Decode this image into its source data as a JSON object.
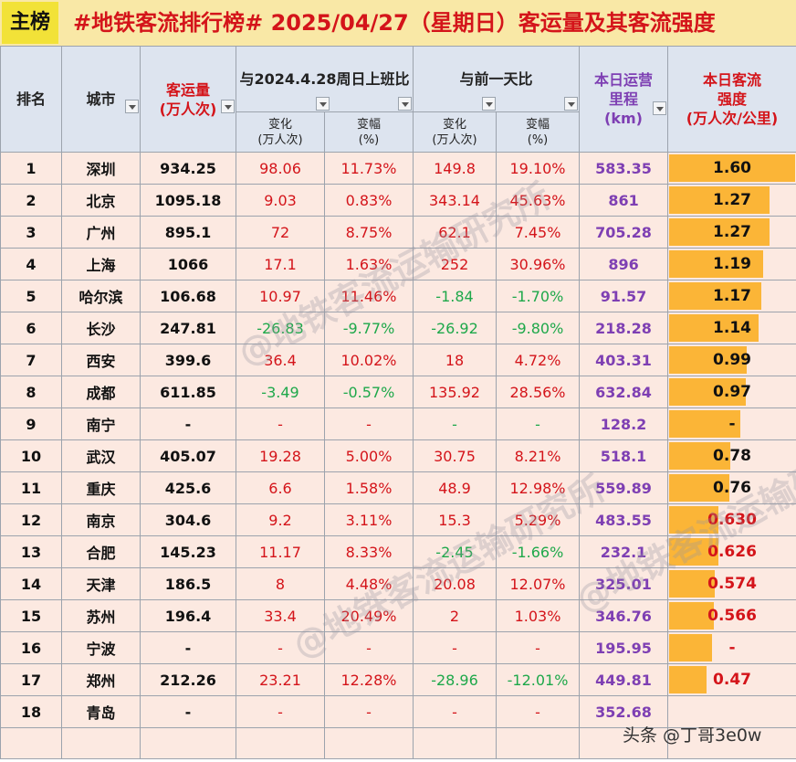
{
  "title_tag": "主榜",
  "title": "#地铁客流排行榜# 2025/04/27（星期日）客运量及其客流强度",
  "headers": {
    "rank": "排名",
    "city": "城市",
    "volume": [
      "客运量",
      "(万人次)"
    ],
    "comp_2024": "与2024.4.28周日上班比",
    "comp_prev": "与前一天比",
    "km": [
      "本日运营",
      "里程",
      "(km)"
    ],
    "intensity": [
      "本日客流",
      "强度",
      "(万人次/公里)"
    ],
    "change": [
      "变化",
      "(万人次)"
    ],
    "pct": [
      "变幅",
      "(%)"
    ]
  },
  "colors": {
    "red": "#d4141a",
    "green": "#1ea84a",
    "purple": "#7e3fb3",
    "bar": "#fbb537",
    "row_bg": "#fce9e1",
    "header_bg": "#dde4ef"
  },
  "chart_data": {
    "type": "table",
    "columns": [
      "排名",
      "城市",
      "客运量(万人次)",
      "与2024.4.28周日上班比 变化(万人次)",
      "与2024.4.28周日上班比 变幅(%)",
      "与前一天比 变化(万人次)",
      "与前一天比 变幅(%)",
      "本日运营里程(km)",
      "本日客流强度(万人次/公里)"
    ],
    "intensity_max": 1.6,
    "rows": [
      {
        "rank": "1",
        "city": "深圳",
        "volume": "934.25",
        "c1": "98.06",
        "p1": "11.73%",
        "c2": "149.8",
        "p2": "19.10%",
        "km": "583.35",
        "intensity": "1.60",
        "iv": 1.6,
        "s1": "up",
        "s2": "up",
        "ired": false
      },
      {
        "rank": "2",
        "city": "北京",
        "volume": "1095.18",
        "c1": "9.03",
        "p1": "0.83%",
        "c2": "343.14",
        "p2": "45.63%",
        "km": "861",
        "intensity": "1.27",
        "iv": 1.27,
        "s1": "up",
        "s2": "up",
        "ired": false
      },
      {
        "rank": "3",
        "city": "广州",
        "volume": "895.1",
        "c1": "72",
        "p1": "8.75%",
        "c2": "62.1",
        "p2": "7.45%",
        "km": "705.28",
        "intensity": "1.27",
        "iv": 1.27,
        "s1": "up",
        "s2": "up",
        "ired": false
      },
      {
        "rank": "4",
        "city": "上海",
        "volume": "1066",
        "c1": "17.1",
        "p1": "1.63%",
        "c2": "252",
        "p2": "30.96%",
        "km": "896",
        "intensity": "1.19",
        "iv": 1.19,
        "s1": "up",
        "s2": "up",
        "ired": false
      },
      {
        "rank": "5",
        "city": "哈尔滨",
        "volume": "106.68",
        "c1": "10.97",
        "p1": "11.46%",
        "c2": "-1.84",
        "p2": "-1.70%",
        "km": "91.57",
        "intensity": "1.17",
        "iv": 1.17,
        "s1": "up",
        "s2": "down",
        "ired": false
      },
      {
        "rank": "6",
        "city": "长沙",
        "volume": "247.81",
        "c1": "-26.83",
        "p1": "-9.77%",
        "c2": "-26.92",
        "p2": "-9.80%",
        "km": "218.28",
        "intensity": "1.14",
        "iv": 1.14,
        "s1": "down",
        "s2": "down",
        "ired": false
      },
      {
        "rank": "7",
        "city": "西安",
        "volume": "399.6",
        "c1": "36.4",
        "p1": "10.02%",
        "c2": "18",
        "p2": "4.72%",
        "km": "403.31",
        "intensity": "0.99",
        "iv": 0.99,
        "s1": "up",
        "s2": "up",
        "ired": false
      },
      {
        "rank": "8",
        "city": "成都",
        "volume": "611.85",
        "c1": "-3.49",
        "p1": "-0.57%",
        "c2": "135.92",
        "p2": "28.56%",
        "km": "632.84",
        "intensity": "0.97",
        "iv": 0.97,
        "s1": "down",
        "s2": "up",
        "ired": false
      },
      {
        "rank": "9",
        "city": "南宁",
        "volume": "-",
        "c1": "-",
        "p1": "-",
        "c2": "-",
        "p2": "-",
        "km": "128.2",
        "intensity": "-",
        "iv": 0.9,
        "s1": "up",
        "s2": "down",
        "ired": false
      },
      {
        "rank": "10",
        "city": "武汉",
        "volume": "405.07",
        "c1": "19.28",
        "p1": "5.00%",
        "c2": "30.75",
        "p2": "8.21%",
        "km": "518.1",
        "intensity": "0.78",
        "iv": 0.78,
        "s1": "up",
        "s2": "up",
        "ired": false
      },
      {
        "rank": "11",
        "city": "重庆",
        "volume": "425.6",
        "c1": "6.6",
        "p1": "1.58%",
        "c2": "48.9",
        "p2": "12.98%",
        "km": "559.89",
        "intensity": "0.76",
        "iv": 0.76,
        "s1": "up",
        "s2": "up",
        "ired": false
      },
      {
        "rank": "12",
        "city": "南京",
        "volume": "304.6",
        "c1": "9.2",
        "p1": "3.11%",
        "c2": "15.3",
        "p2": "5.29%",
        "km": "483.55",
        "intensity": "0.630",
        "iv": 0.63,
        "s1": "up",
        "s2": "up",
        "ired": true
      },
      {
        "rank": "13",
        "city": "合肥",
        "volume": "145.23",
        "c1": "11.17",
        "p1": "8.33%",
        "c2": "-2.45",
        "p2": "-1.66%",
        "km": "232.1",
        "intensity": "0.626",
        "iv": 0.626,
        "s1": "up",
        "s2": "down",
        "ired": true
      },
      {
        "rank": "14",
        "city": "天津",
        "volume": "186.5",
        "c1": "8",
        "p1": "4.48%",
        "c2": "20.08",
        "p2": "12.07%",
        "km": "325.01",
        "intensity": "0.574",
        "iv": 0.574,
        "s1": "up",
        "s2": "up",
        "ired": true
      },
      {
        "rank": "15",
        "city": "苏州",
        "volume": "196.4",
        "c1": "33.4",
        "p1": "20.49%",
        "c2": "2",
        "p2": "1.03%",
        "km": "346.76",
        "intensity": "0.566",
        "iv": 0.566,
        "s1": "up",
        "s2": "up",
        "ired": true
      },
      {
        "rank": "16",
        "city": "宁波",
        "volume": "-",
        "c1": "-",
        "p1": "-",
        "c2": "-",
        "p2": "-",
        "km": "195.95",
        "intensity": "-",
        "iv": 0.55,
        "s1": "up",
        "s2": "up",
        "ired": true
      },
      {
        "rank": "17",
        "city": "郑州",
        "volume": "212.26",
        "c1": "23.21",
        "p1": "12.28%",
        "c2": "-28.96",
        "p2": "-12.01%",
        "km": "449.81",
        "intensity": "0.47",
        "iv": 0.47,
        "s1": "up",
        "s2": "down",
        "ired": true
      },
      {
        "rank": "18",
        "city": "青岛",
        "volume": "-",
        "c1": "-",
        "p1": "-",
        "c2": "-",
        "p2": "-",
        "km": "352.68",
        "intensity": "",
        "iv": 0,
        "s1": "up",
        "s2": "up",
        "ired": false
      }
    ]
  },
  "watermarks": [
    "@地铁客流运输研究所",
    "@地铁客流运输研究所",
    "@地铁客流运输研究所"
  ],
  "credit": "头条 @丁哥3e0w"
}
